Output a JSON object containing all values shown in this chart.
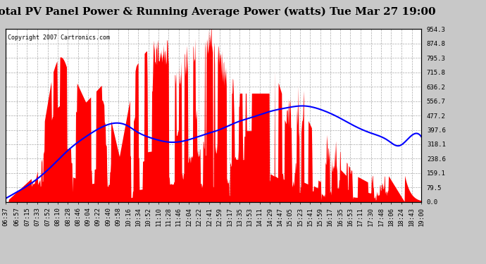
{
  "title": "Total PV Panel Power & Running Average Power (watts) Tue Mar 27 19:00",
  "copyright": "Copyright 2007 Cartronics.com",
  "y_ticks": [
    0.0,
    79.5,
    159.1,
    238.6,
    318.1,
    397.6,
    477.2,
    556.7,
    636.2,
    715.8,
    795.3,
    874.8,
    954.3
  ],
  "y_max": 954.3,
  "bg_color": "#c8c8c8",
  "plot_bg_color": "#ffffff",
  "bar_color": "#ff0000",
  "line_color": "#0000ff",
  "title_fontsize": 11,
  "copyright_fontsize": 6,
  "tick_fontsize": 6.5,
  "x_tick_labels": [
    "06:37",
    "06:57",
    "07:15",
    "07:33",
    "07:52",
    "08:10",
    "08:28",
    "08:46",
    "09:04",
    "09:22",
    "09:40",
    "09:58",
    "10:16",
    "10:34",
    "10:52",
    "11:10",
    "11:28",
    "11:46",
    "12:04",
    "12:22",
    "12:41",
    "12:59",
    "13:17",
    "13:35",
    "13:53",
    "14:11",
    "14:29",
    "14:47",
    "15:05",
    "15:23",
    "15:41",
    "15:59",
    "16:17",
    "16:35",
    "16:53",
    "17:11",
    "17:30",
    "17:48",
    "18:06",
    "18:24",
    "18:43",
    "19:00"
  ],
  "avg_curve_x": [
    397,
    420,
    450,
    480,
    510,
    540,
    570,
    600,
    615,
    630,
    660,
    690,
    720,
    750,
    780,
    810,
    840,
    870,
    900,
    930,
    960,
    990,
    1020,
    1050,
    1080,
    1100,
    1120,
    1140
  ],
  "avg_curve_y": [
    20,
    60,
    120,
    200,
    290,
    360,
    415,
    435,
    420,
    390,
    350,
    330,
    340,
    370,
    400,
    440,
    470,
    500,
    520,
    530,
    510,
    470,
    420,
    380,
    340,
    310,
    360,
    360
  ]
}
